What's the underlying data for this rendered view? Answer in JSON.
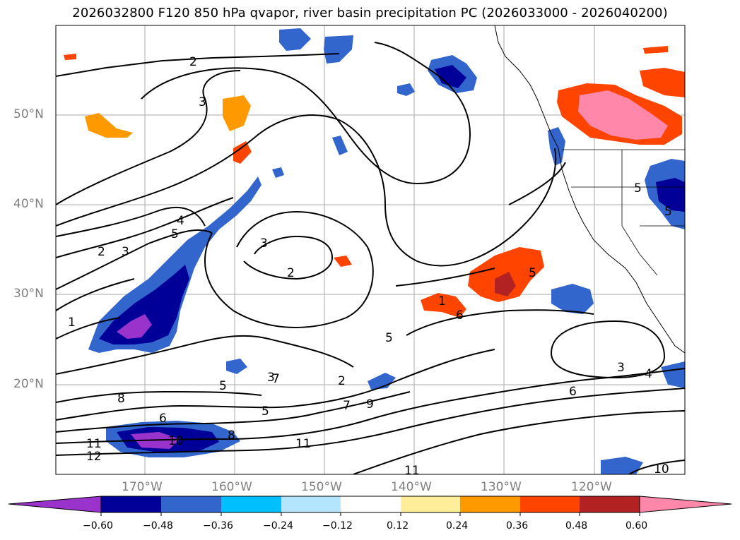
{
  "title": "2026032800 F120 850 hPa qvapor, river basin precipitation PC (2026033000 - 2026040200)",
  "map": {
    "lat_labels": [
      "50°N",
      "40°N",
      "30°N",
      "20°N"
    ],
    "lon_labels": [
      "170°W",
      "160°W",
      "150°W",
      "140°W",
      "130°W",
      "120°W"
    ],
    "extent": {
      "lon": [
        -180,
        -110
      ],
      "lat": [
        10,
        60
      ]
    },
    "grid": true,
    "contour_labels": [
      "2",
      "3",
      "3",
      "2",
      "4",
      "5",
      "2",
      "3",
      "1",
      "3",
      "2",
      "5",
      "8",
      "6",
      "8",
      "11",
      "12",
      "10",
      "6",
      "7",
      "5",
      "5",
      "7",
      "9",
      "11",
      "6",
      "3",
      "4",
      "11",
      "10",
      "5",
      "5",
      "1",
      "5"
    ]
  },
  "colorbar": {
    "colors": [
      "#9933cc",
      "#000099",
      "#3366cc",
      "#00bfff",
      "#b3e5ff",
      "#ffffff",
      "#ffee99",
      "#ff9900",
      "#ff4400",
      "#b22222",
      "#ff88aa"
    ],
    "tick_labels": [
      "−0.60",
      "−0.48",
      "−0.36",
      "−0.24",
      "−0.12",
      "0.12",
      "0.24",
      "0.36",
      "0.48",
      "0.60"
    ],
    "extend": "both"
  }
}
